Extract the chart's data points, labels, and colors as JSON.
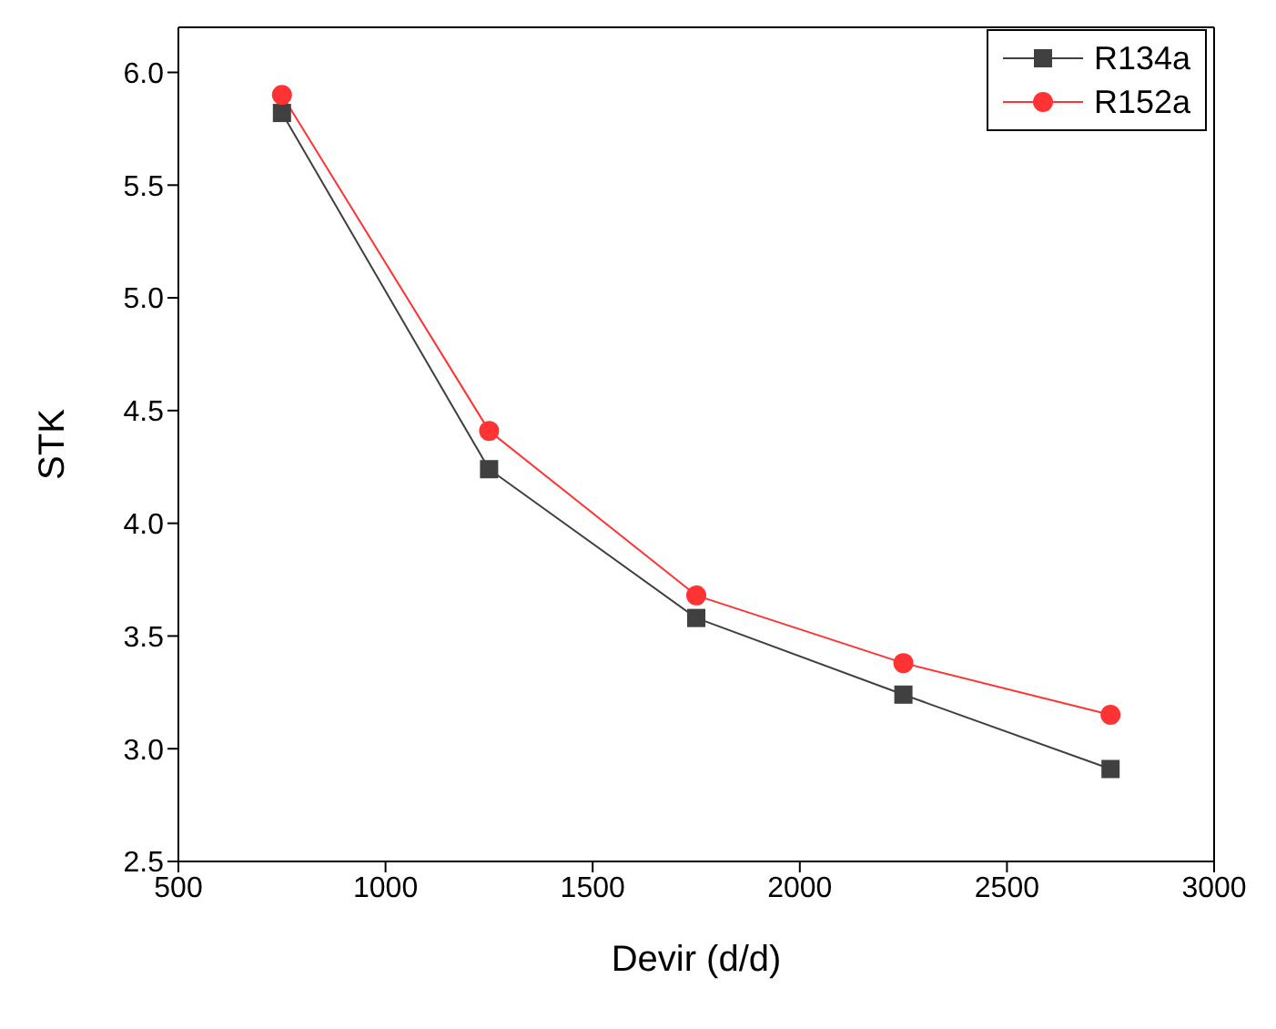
{
  "chart_data": {
    "type": "line",
    "xlabel": "Devir (d/d)",
    "ylabel": "STK",
    "x": [
      750,
      1250,
      1750,
      2250,
      2750
    ],
    "series": [
      {
        "name": "R134a",
        "color": "#404040",
        "marker": "square",
        "values": [
          5.82,
          4.24,
          3.58,
          3.24,
          2.91
        ]
      },
      {
        "name": "R152a",
        "color": "#ff3333",
        "marker": "circle",
        "values": [
          5.9,
          4.41,
          3.68,
          3.38,
          3.15
        ]
      }
    ],
    "xlim": [
      500,
      3000
    ],
    "xticks": [
      500,
      1000,
      1500,
      2000,
      2500,
      3000
    ],
    "ylim": [
      2.5,
      6.2
    ],
    "yticks": [
      2.5,
      {
        "value": 3,
        "label": "3.0"
      },
      3.5,
      {
        "value": 4,
        "label": "4.0"
      },
      4.5,
      {
        "value": 5,
        "label": "5.0"
      },
      5.5,
      {
        "value": 6,
        "label": "6.0"
      }
    ],
    "legend": "top right",
    "grid": false
  }
}
